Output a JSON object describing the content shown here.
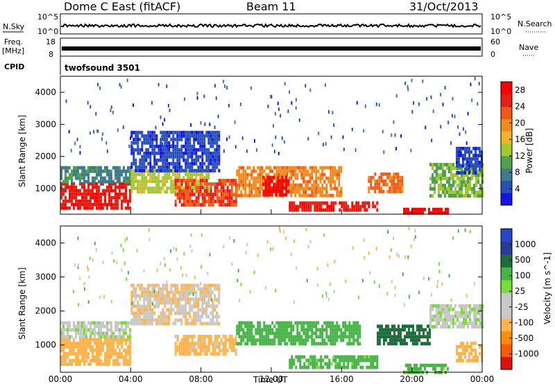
{
  "header": {
    "title": "Dome C East (fitACF)",
    "beam": "Beam 11",
    "date": "31/Oct/2013"
  },
  "sky_panel": {
    "left_label": "N.Sky",
    "right_label": "N.Search",
    "left_ticks": [
      "10^5",
      "10^0"
    ],
    "right_ticks": [
      "10^5",
      "10^0"
    ]
  },
  "freq_panel": {
    "left_label_1": "Freq.",
    "left_label_2": "[MHz]",
    "right_label": "Nave",
    "left_ticks": [
      "18",
      "8"
    ],
    "right_ticks": [
      "60",
      "0"
    ]
  },
  "cpid_panel": {
    "label": "CPID",
    "program": "twofsound 3501"
  },
  "colors": {
    "power_scale": [
      "#1414e6",
      "#284fb9",
      "#3c7c8e",
      "#50a050",
      "#a0c830",
      "#f0b428",
      "#f08c1e",
      "#f05a14",
      "#e61e14",
      "#ff0000"
    ],
    "velocity_scale": [
      "#e01010",
      "#ff5a00",
      "#ff8c00",
      "#ffb450",
      "#c8c8c8",
      "#c8c8c8",
      "#78dc3c",
      "#46b446",
      "#1e6e3c",
      "#283c96",
      "#2846c8"
    ]
  },
  "chart_data": [
    {
      "type": "heatmap",
      "name": "power",
      "xlabel": "",
      "ylabel": "Slant Range [km]",
      "xlim": [
        0,
        24
      ],
      "ylim": [
        200,
        4500
      ],
      "y_ticks": [
        "1000",
        "2000",
        "3000",
        "4000"
      ],
      "colorbar_label": "Power [dB]",
      "colorbar_ticks": [
        "4",
        "8",
        "12",
        "16",
        "20",
        "24",
        "28"
      ],
      "colorbar_range": [
        0,
        30
      ],
      "echo_regions": [
        {
          "time": [
            0.0,
            4.0
          ],
          "range_km": [
            400,
            1200
          ],
          "level": 26
        },
        {
          "time": [
            0.0,
            4.0
          ],
          "range_km": [
            1200,
            1700
          ],
          "level": 8
        },
        {
          "time": [
            4.0,
            8.5
          ],
          "range_km": [
            900,
            1600
          ],
          "level": 14
        },
        {
          "time": [
            4.0,
            9.0
          ],
          "range_km": [
            1600,
            2800
          ],
          "level": 4
        },
        {
          "time": [
            6.5,
            10.0
          ],
          "range_km": [
            500,
            1300
          ],
          "level": 24
        },
        {
          "time": [
            10.0,
            16.0
          ],
          "range_km": [
            800,
            1700
          ],
          "level": 20
        },
        {
          "time": [
            11.5,
            13.0
          ],
          "range_km": [
            800,
            1400
          ],
          "level": 28
        },
        {
          "time": [
            13.0,
            18.0
          ],
          "range_km": [
            300,
            600
          ],
          "level": 26
        },
        {
          "time": [
            17.5,
            19.5
          ],
          "range_km": [
            900,
            1500
          ],
          "level": 22
        },
        {
          "time": [
            19.5,
            22.0
          ],
          "range_km": [
            220,
            400
          ],
          "level": 29
        },
        {
          "time": [
            21.0,
            24.0
          ],
          "range_km": [
            800,
            1800
          ],
          "level": 12
        },
        {
          "time": [
            22.5,
            24.0
          ],
          "range_km": [
            1500,
            2300
          ],
          "level": 4
        }
      ]
    },
    {
      "type": "heatmap",
      "name": "velocity",
      "xlabel": "Time UT",
      "ylabel": "Slant Range [km]",
      "xlim": [
        0,
        24
      ],
      "ylim": [
        200,
        4500
      ],
      "x_ticks": [
        "00:00",
        "04:00",
        "08:00",
        "12:00",
        "16:00",
        "20:00",
        "00:00"
      ],
      "y_ticks": [
        "1000",
        "2000",
        "3000",
        "4000"
      ],
      "colorbar_label": "Velocity [m s^-1]",
      "colorbar_ticks": [
        "1000",
        "500",
        "100",
        "25",
        "-25",
        "-100",
        "-500",
        "-1000"
      ],
      "echo_regions": [
        {
          "time": [
            0.0,
            4.0
          ],
          "range_km": [
            400,
            1200
          ],
          "level": -200
        },
        {
          "time": [
            0.0,
            4.0
          ],
          "range_km": [
            1200,
            1700
          ],
          "level": 0
        },
        {
          "time": [
            4.0,
            9.0
          ],
          "range_km": [
            1600,
            2800
          ],
          "level": -80
        },
        {
          "time": [
            6.5,
            10.0
          ],
          "range_km": [
            700,
            1300
          ],
          "level": -150
        },
        {
          "time": [
            10.0,
            17.0
          ],
          "range_km": [
            1000,
            1700
          ],
          "level": 300
        },
        {
          "time": [
            13.0,
            18.0
          ],
          "range_km": [
            300,
            700
          ],
          "level": 150
        },
        {
          "time": [
            18.0,
            21.0
          ],
          "range_km": [
            1000,
            1600
          ],
          "level": 800
        },
        {
          "time": [
            19.5,
            22.0
          ],
          "range_km": [
            220,
            450
          ],
          "level": 150
        },
        {
          "time": [
            21.0,
            24.0
          ],
          "range_km": [
            1500,
            2200
          ],
          "level": 0
        },
        {
          "time": [
            22.5,
            24.0
          ],
          "range_km": [
            500,
            1100
          ],
          "level": -200
        }
      ]
    }
  ]
}
